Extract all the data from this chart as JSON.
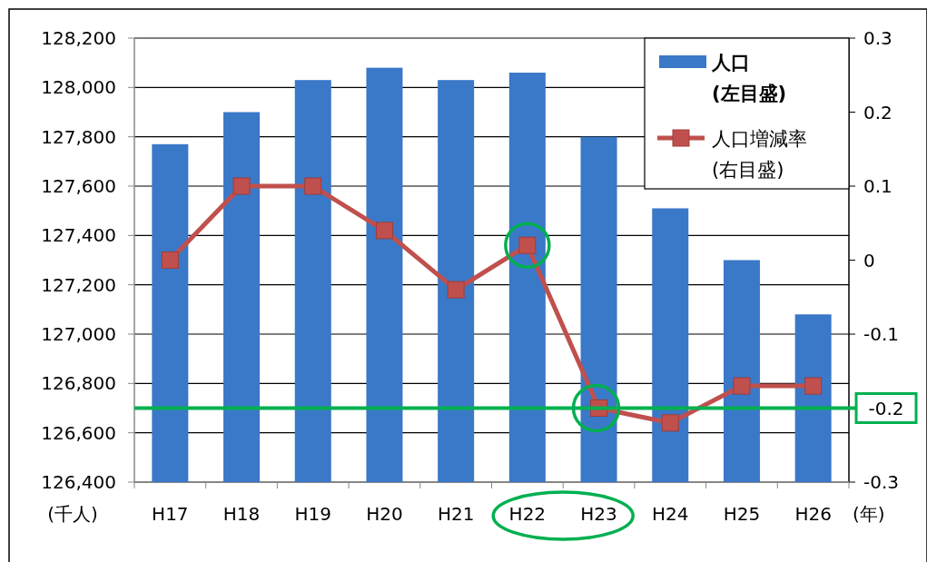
{
  "chart_data": {
    "type": "bar",
    "categories": [
      "H17",
      "H18",
      "H19",
      "H20",
      "H21",
      "H22",
      "H23",
      "H24",
      "H25",
      "H26"
    ],
    "series": [
      {
        "name": "人口\n(左目盛)",
        "color": "#3a78c8",
        "values": [
          127770,
          127900,
          128030,
          128080,
          128030,
          128060,
          127800,
          127510,
          127300,
          127080
        ]
      },
      {
        "name": "人口増減率\n(右目盛)",
        "type": "line",
        "axis": "y2",
        "color": "#c0504d",
        "values": [
          0,
          0.1,
          0.1,
          0.04,
          -0.04,
          0.02,
          -0.2,
          -0.22,
          -0.17,
          -0.17
        ]
      }
    ],
    "ylim": [
      126400,
      128200
    ],
    "yticks": [
      {
        "value": 126400,
        "label": "126,400"
      },
      {
        "value": 126600,
        "label": "126,600"
      },
      {
        "value": 126800,
        "label": "126,800"
      },
      {
        "value": 127000,
        "label": "127,000"
      },
      {
        "value": 127200,
        "label": "127,200"
      },
      {
        "value": 127400,
        "label": "127,400"
      },
      {
        "value": 127600,
        "label": "127,600"
      },
      {
        "value": 127800,
        "label": "127,800"
      },
      {
        "value": 128000,
        "label": "128,000"
      },
      {
        "value": 128200,
        "label": "128,200"
      }
    ],
    "y2lim": [
      -0.3,
      0.3
    ],
    "y2ticks": [
      -0.3,
      -0.1,
      0,
      0.1,
      0.2,
      0.3
    ],
    "ylabel": "(千人)",
    "xlabel": "(年)",
    "ref_lines": [
      {
        "axis": "y2",
        "value": -0.2,
        "label": "-0.2",
        "color": "#00b050"
      }
    ],
    "grid": "y",
    "legend": "top right",
    "marker": "square"
  }
}
